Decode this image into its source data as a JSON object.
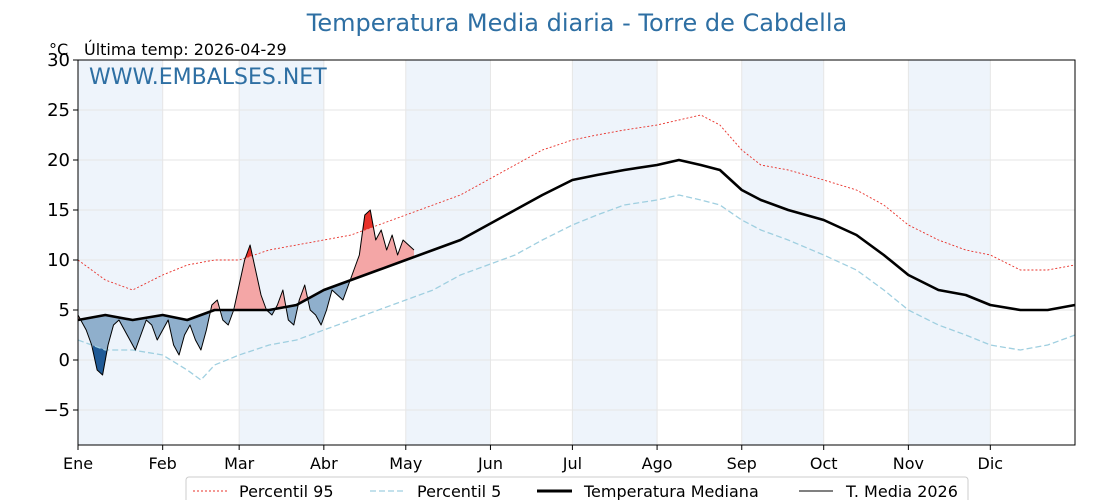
{
  "chart_data": {
    "type": "line",
    "title": "Temperatura Media diaria - Torre de Cabdella",
    "unit_label": "°C",
    "subtitle": "Última temp: 2026-04-29",
    "watermark": "WWW.EMBALSES.NET",
    "xlim": [
      0,
      365
    ],
    "ylim": [
      -8.5,
      30
    ],
    "yticks": [
      -5,
      0,
      5,
      10,
      15,
      20,
      25,
      30
    ],
    "ytick_labels": [
      "−5",
      "0",
      "5",
      "10",
      "15",
      "20",
      "25",
      "30"
    ],
    "months": [
      "Ene",
      "Feb",
      "Mar",
      "Abr",
      "May",
      "Jun",
      "Jul",
      "Ago",
      "Sep",
      "Oct",
      "Nov",
      "Dic"
    ],
    "month_start_days": [
      0,
      31,
      59,
      90,
      120,
      151,
      181,
      212,
      243,
      273,
      304,
      334
    ],
    "shaded_months": [
      "Ene",
      "Mar",
      "May",
      "Jul",
      "Sep",
      "Nov"
    ],
    "grid": true,
    "legend_position": "bottom-center",
    "colors": {
      "title": "#2e6fa3",
      "p95": "#e8312a",
      "p5": "#9fcfe0",
      "median": "#000000",
      "current": "#000000",
      "above_fill": "#f4a6a6",
      "above_fill_strong": "#e8312a",
      "below_fill": "#8fafcc",
      "below_fill_strong": "#1f5a96",
      "month_shade": "#eef4fb"
    },
    "series": [
      {
        "name": "Percentil 95",
        "style": "dotted-red",
        "points": [
          [
            0,
            10.0
          ],
          [
            10,
            8.0
          ],
          [
            20,
            7.0
          ],
          [
            31,
            8.5
          ],
          [
            40,
            9.5
          ],
          [
            50,
            10.0
          ],
          [
            59,
            10.0
          ],
          [
            70,
            11.0
          ],
          [
            80,
            11.5
          ],
          [
            90,
            12.0
          ],
          [
            100,
            12.5
          ],
          [
            110,
            13.5
          ],
          [
            120,
            14.5
          ],
          [
            130,
            15.5
          ],
          [
            140,
            16.5
          ],
          [
            150,
            18.0
          ],
          [
            160,
            19.5
          ],
          [
            170,
            21.0
          ],
          [
            181,
            22.0
          ],
          [
            190,
            22.5
          ],
          [
            200,
            23.0
          ],
          [
            212,
            23.5
          ],
          [
            220,
            24.0
          ],
          [
            228,
            24.5
          ],
          [
            235,
            23.5
          ],
          [
            243,
            21.0
          ],
          [
            250,
            19.5
          ],
          [
            260,
            19.0
          ],
          [
            273,
            18.0
          ],
          [
            285,
            17.0
          ],
          [
            295,
            15.5
          ],
          [
            304,
            13.5
          ],
          [
            315,
            12.0
          ],
          [
            325,
            11.0
          ],
          [
            334,
            10.5
          ],
          [
            345,
            9.0
          ],
          [
            355,
            9.0
          ],
          [
            365,
            9.5
          ]
        ]
      },
      {
        "name": "Percentil 5",
        "style": "dashed-lightblue",
        "points": [
          [
            0,
            2.0
          ],
          [
            10,
            1.0
          ],
          [
            20,
            1.0
          ],
          [
            31,
            0.5
          ],
          [
            40,
            -1.0
          ],
          [
            45,
            -2.0
          ],
          [
            50,
            -0.5
          ],
          [
            59,
            0.5
          ],
          [
            70,
            1.5
          ],
          [
            80,
            2.0
          ],
          [
            90,
            3.0
          ],
          [
            100,
            4.0
          ],
          [
            110,
            5.0
          ],
          [
            120,
            6.0
          ],
          [
            130,
            7.0
          ],
          [
            140,
            8.5
          ],
          [
            150,
            9.5
          ],
          [
            160,
            10.5
          ],
          [
            170,
            12.0
          ],
          [
            181,
            13.5
          ],
          [
            190,
            14.5
          ],
          [
            200,
            15.5
          ],
          [
            212,
            16.0
          ],
          [
            220,
            16.5
          ],
          [
            228,
            16.0
          ],
          [
            235,
            15.5
          ],
          [
            243,
            14.0
          ],
          [
            250,
            13.0
          ],
          [
            260,
            12.0
          ],
          [
            273,
            10.5
          ],
          [
            285,
            9.0
          ],
          [
            295,
            7.0
          ],
          [
            304,
            5.0
          ],
          [
            315,
            3.5
          ],
          [
            325,
            2.5
          ],
          [
            334,
            1.5
          ],
          [
            345,
            1.0
          ],
          [
            355,
            1.5
          ],
          [
            365,
            2.5
          ]
        ]
      },
      {
        "name": "Temperatura Mediana",
        "style": "thick-black",
        "points": [
          [
            0,
            4.0
          ],
          [
            10,
            4.5
          ],
          [
            20,
            4.0
          ],
          [
            31,
            4.5
          ],
          [
            40,
            4.0
          ],
          [
            50,
            5.0
          ],
          [
            59,
            5.0
          ],
          [
            70,
            5.0
          ],
          [
            80,
            5.5
          ],
          [
            90,
            7.0
          ],
          [
            100,
            8.0
          ],
          [
            110,
            9.0
          ],
          [
            120,
            10.0
          ],
          [
            130,
            11.0
          ],
          [
            140,
            12.0
          ],
          [
            150,
            13.5
          ],
          [
            160,
            15.0
          ],
          [
            170,
            16.5
          ],
          [
            181,
            18.0
          ],
          [
            190,
            18.5
          ],
          [
            200,
            19.0
          ],
          [
            212,
            19.5
          ],
          [
            220,
            20.0
          ],
          [
            228,
            19.5
          ],
          [
            235,
            19.0
          ],
          [
            243,
            17.0
          ],
          [
            250,
            16.0
          ],
          [
            260,
            15.0
          ],
          [
            273,
            14.0
          ],
          [
            285,
            12.5
          ],
          [
            295,
            10.5
          ],
          [
            304,
            8.5
          ],
          [
            315,
            7.0
          ],
          [
            325,
            6.5
          ],
          [
            334,
            5.5
          ],
          [
            345,
            5.0
          ],
          [
            355,
            5.0
          ],
          [
            365,
            5.5
          ]
        ]
      },
      {
        "name": "T. Media 2026",
        "style": "thin-black",
        "points": [
          [
            0,
            4.5
          ],
          [
            3,
            3.0
          ],
          [
            5,
            1.5
          ],
          [
            7,
            -1.0
          ],
          [
            9,
            -1.5
          ],
          [
            11,
            1.5
          ],
          [
            13,
            3.5
          ],
          [
            15,
            4.0
          ],
          [
            17,
            3.0
          ],
          [
            19,
            2.0
          ],
          [
            21,
            1.0
          ],
          [
            23,
            2.5
          ],
          [
            25,
            4.0
          ],
          [
            27,
            3.5
          ],
          [
            29,
            2.0
          ],
          [
            31,
            3.0
          ],
          [
            33,
            4.0
          ],
          [
            35,
            1.5
          ],
          [
            37,
            0.5
          ],
          [
            39,
            2.5
          ],
          [
            41,
            3.5
          ],
          [
            43,
            2.0
          ],
          [
            45,
            1.0
          ],
          [
            47,
            3.0
          ],
          [
            49,
            5.5
          ],
          [
            51,
            6.0
          ],
          [
            53,
            4.0
          ],
          [
            55,
            3.5
          ],
          [
            57,
            5.0
          ],
          [
            59,
            7.5
          ],
          [
            61,
            10.0
          ],
          [
            63,
            11.5
          ],
          [
            65,
            9.0
          ],
          [
            67,
            6.5
          ],
          [
            69,
            5.0
          ],
          [
            71,
            4.5
          ],
          [
            73,
            5.5
          ],
          [
            75,
            7.0
          ],
          [
            77,
            4.0
          ],
          [
            79,
            3.5
          ],
          [
            81,
            6.0
          ],
          [
            83,
            7.5
          ],
          [
            85,
            5.0
          ],
          [
            87,
            4.5
          ],
          [
            89,
            3.5
          ],
          [
            91,
            5.0
          ],
          [
            93,
            7.0
          ],
          [
            95,
            6.5
          ],
          [
            97,
            6.0
          ],
          [
            99,
            7.5
          ],
          [
            101,
            9.0
          ],
          [
            103,
            10.5
          ],
          [
            105,
            14.5
          ],
          [
            107,
            15.0
          ],
          [
            109,
            12.0
          ],
          [
            111,
            13.0
          ],
          [
            113,
            11.0
          ],
          [
            115,
            12.5
          ],
          [
            117,
            10.5
          ],
          [
            119,
            12.0
          ],
          [
            121,
            11.5
          ],
          [
            123,
            11.0
          ]
        ]
      }
    ]
  },
  "legend": {
    "items": [
      {
        "label": "Percentil 95"
      },
      {
        "label": "Percentil 5"
      },
      {
        "label": "Temperatura Mediana"
      },
      {
        "label": "T. Media 2026"
      }
    ]
  }
}
